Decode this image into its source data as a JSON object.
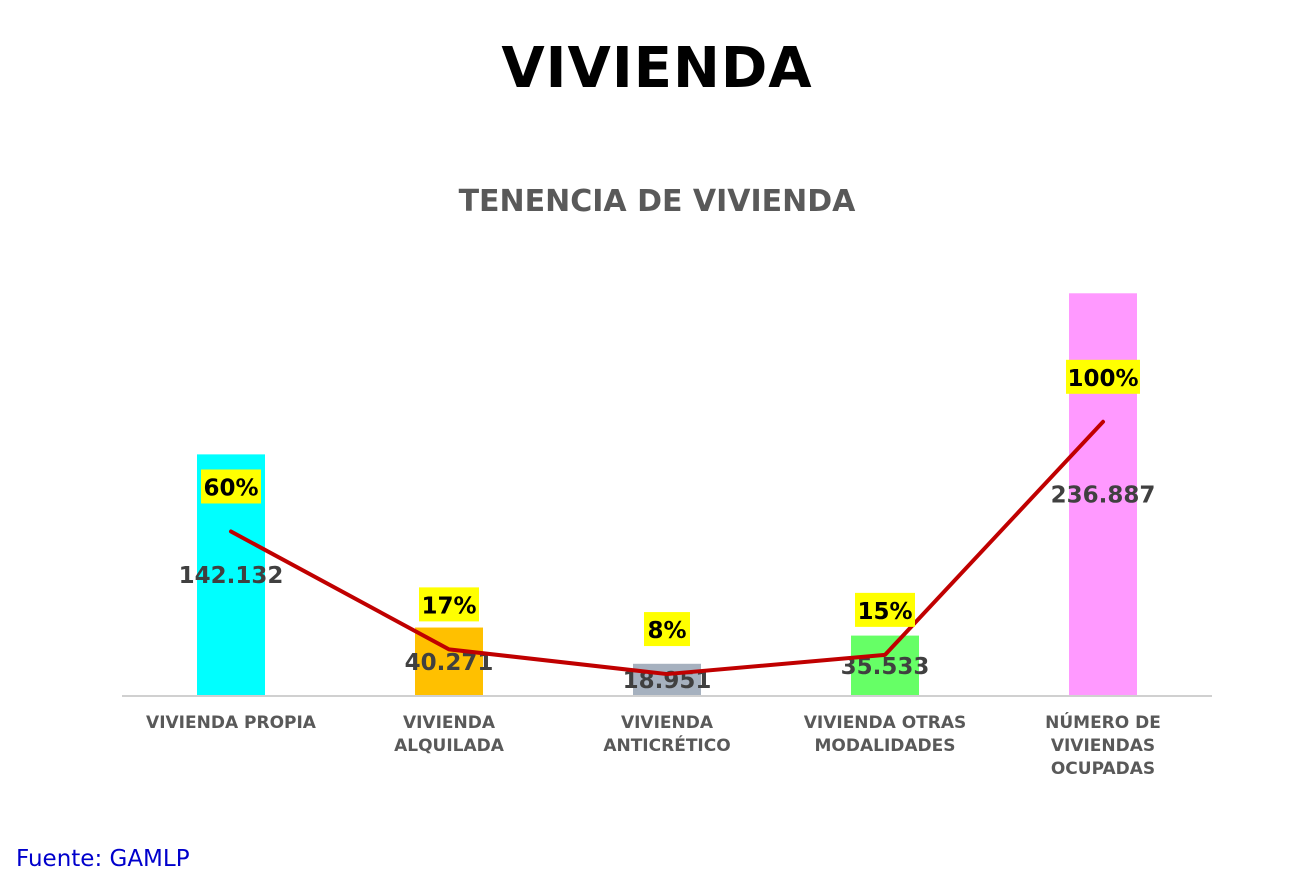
{
  "header": {
    "title": "VIVIENDA"
  },
  "footer": {
    "source": "Fuente: GAMLP"
  },
  "chart_data": {
    "type": "bar",
    "title": "TENENCIA DE VIVIENDA",
    "xlabel": "",
    "ylabel": "",
    "categories": [
      [
        "VIVIENDA PROPIA"
      ],
      [
        "VIVIENDA",
        "ALQUILADA"
      ],
      [
        "VIVIENDA",
        "ANTICRÉTICO"
      ],
      [
        "VIVIENDA OTRAS",
        "MODALIDADES"
      ],
      [
        "NÚMERO DE",
        "VIVIENDAS",
        "OCUPADAS"
      ]
    ],
    "series": [
      {
        "type": "bar",
        "values": [
          142132,
          40271,
          18951,
          35533,
          236887
        ],
        "labels": [
          "142.132",
          "40.271",
          "18.951",
          "35.533",
          "236.887"
        ],
        "colors": [
          "#00ffff",
          "#ffc000",
          "#a6b1bf",
          "#66ff66",
          "#ff99ff"
        ]
      },
      {
        "type": "line",
        "values": [
          60,
          17,
          8,
          15,
          100
        ],
        "labels": [
          "60%",
          "17%",
          "8%",
          "15%",
          "100%"
        ],
        "color": "#c00000"
      }
    ],
    "ylim": [
      0,
      250000
    ],
    "y2lim": [
      0,
      155
    ],
    "grid": false,
    "legend": "none",
    "label_highlight_color": "#ffff00"
  }
}
